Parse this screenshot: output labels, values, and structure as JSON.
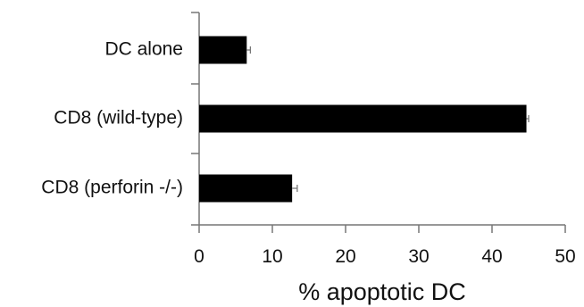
{
  "chart_data": {
    "type": "bar",
    "orientation": "horizontal",
    "categories": [
      "DC alone",
      "CD8 (wild-type)",
      "CD8 (perforin -/-)"
    ],
    "values": [
      6.5,
      44.7,
      12.7
    ],
    "errors": [
      0.5,
      0.3,
      0.7
    ],
    "xlabel": "% apoptotic DC",
    "ylabel": "",
    "title": "",
    "xlim": [
      0,
      50
    ],
    "xticks": [
      "0",
      "10",
      "20",
      "30",
      "40",
      "50"
    ],
    "grid": false,
    "legend": "none",
    "colors": {
      "bar": "#000000",
      "axis": "#777777",
      "text": "#111111"
    }
  }
}
